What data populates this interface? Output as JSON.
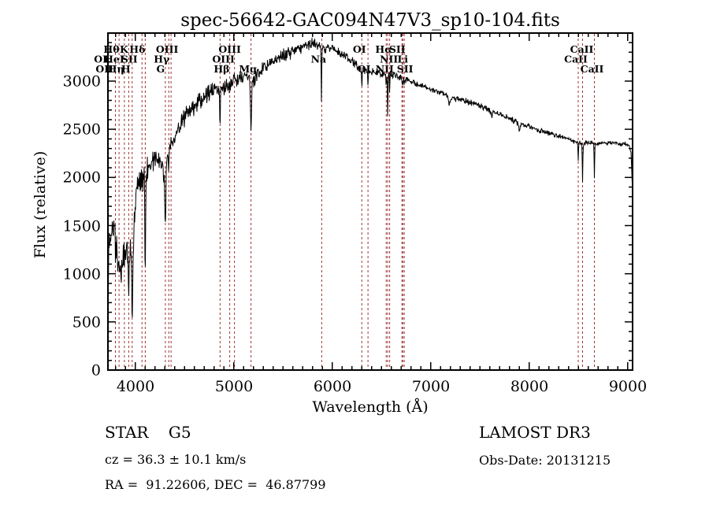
{
  "title": "spec-56642-GAC094N47V3_sp10-104.fits",
  "colors": {
    "background": "#ffffff",
    "spectrum": "#000000",
    "line_marker": "#a03232",
    "axis": "#000000"
  },
  "annotations": {
    "class_label": "STAR    G5",
    "cz": "cz = 36.3 ± 10.1 km/s",
    "ra_dec": "RA =  91.22606, DEC =  46.87799",
    "survey": "LAMOST DR3",
    "obs_date": "Obs-Date: 20131215"
  },
  "chart_data": {
    "type": "line",
    "title": "spec-56642-GAC094N47V3_sp10-104.fits",
    "xlabel": "Wavelength (Å)",
    "ylabel": "Flux (relative)",
    "xlim": [
      3722,
      9050
    ],
    "ylim": [
      0,
      3500
    ],
    "grid": false,
    "legend": "none",
    "x_ticks": [
      4000,
      5000,
      6000,
      7000,
      8000,
      9000
    ],
    "x_tick_labels": [
      "4000",
      "5000",
      "6000",
      "7000",
      "8000",
      "9000"
    ],
    "y_ticks": [
      3000,
      2500,
      2000,
      1500,
      1000,
      500,
      0
    ],
    "y_tick_labels": [
      "3000",
      "2500",
      "2000",
      "1500",
      "1000",
      "500",
      "0"
    ],
    "x_minor_step": 100,
    "y_minor_step": 100,
    "spectral_lines": [
      {
        "label": "OI",
        "wavelength": 3727,
        "row": 2,
        "dx": -10
      },
      {
        "label": "OII",
        "wavelength": 3727,
        "row": 3,
        "dx": -5
      },
      {
        "label": "Hθ",
        "wavelength": 3798,
        "row": 1,
        "dx": -5
      },
      {
        "label": "Hη",
        "wavelength": 3835,
        "row": 3,
        "dx": -4
      },
      {
        "label": "HeI",
        "wavelength": 3889,
        "row": 2,
        "dx": -13
      },
      {
        "label": "K",
        "wavelength": 3933,
        "row": 1,
        "dx": -6
      },
      {
        "label": "H",
        "wavelength": 3968,
        "row": 3,
        "dx": -8
      },
      {
        "label": "SII",
        "wavelength": 4068,
        "row": 2,
        "dx": -16
      },
      {
        "label": "Hδ",
        "wavelength": 4101,
        "row": 1,
        "dx": -10
      },
      {
        "label": "G",
        "wavelength": 4305,
        "row": 3,
        "dx": -6
      },
      {
        "label": "Hγ",
        "wavelength": 4340,
        "row": 2,
        "dx": -9
      },
      {
        "label": "OIII",
        "wavelength": 4363,
        "row": 1,
        "dx": -5
      },
      {
        "label": "Hβ",
        "wavelength": 4861,
        "row": 3,
        "dx": 2
      },
      {
        "label": "OIII",
        "wavelength": 4959,
        "row": 2,
        "dx": -8
      },
      {
        "label": "OIII",
        "wavelength": 5007,
        "row": 1,
        "dx": -6
      },
      {
        "label": "Mg",
        "wavelength": 5175,
        "row": 3,
        "dx": -4
      },
      {
        "label": "Na",
        "wavelength": 5893,
        "row": 2,
        "dx": -4
      },
      {
        "label": "OI",
        "wavelength": 6300,
        "row": 1,
        "dx": -3
      },
      {
        "label": "OI",
        "wavelength": 6363,
        "row": 3,
        "dx": -5
      },
      {
        "label": "NII",
        "wavelength": 6548,
        "row": 3,
        "dx": -2
      },
      {
        "label": "Hα",
        "wavelength": 6563,
        "row": 1,
        "dx": -5
      },
      {
        "label": "NII",
        "wavelength": 6583,
        "row": 2,
        "dx": -1
      },
      {
        "label": "Li",
        "wavelength": 6708,
        "row": 2,
        "dx": 1
      },
      {
        "label": "SII",
        "wavelength": 6716,
        "row": 1,
        "dx": -7
      },
      {
        "label": "SII",
        "wavelength": 6731,
        "row": 3,
        "dx": 1
      },
      {
        "label": "CaII",
        "wavelength": 8498,
        "row": 2,
        "dx": -3
      },
      {
        "label": "CaII",
        "wavelength": 8542,
        "row": 1,
        "dx": -1
      },
      {
        "label": "CaII",
        "wavelength": 8662,
        "row": 3,
        "dx": -3
      }
    ],
    "envelope_points": [
      [
        3722,
        60,
        30
      ],
      [
        3728,
        1150,
        260
      ],
      [
        3745,
        1320,
        260
      ],
      [
        3762,
        1420,
        270
      ],
      [
        3778,
        1450,
        280
      ],
      [
        3795,
        1280,
        250
      ],
      [
        3815,
        1150,
        220
      ],
      [
        3835,
        1080,
        200
      ],
      [
        3855,
        1020,
        190
      ],
      [
        3875,
        1130,
        190
      ],
      [
        3895,
        1220,
        200
      ],
      [
        3915,
        1260,
        210
      ],
      [
        3935,
        1150,
        240
      ],
      [
        3955,
        1220,
        260
      ],
      [
        3975,
        1200,
        280
      ],
      [
        3995,
        1650,
        220
      ],
      [
        4015,
        1900,
        190
      ],
      [
        4040,
        1960,
        170
      ],
      [
        4070,
        2000,
        170
      ],
      [
        4100,
        2010,
        180
      ],
      [
        4130,
        2100,
        150
      ],
      [
        4170,
        2160,
        140
      ],
      [
        4210,
        2200,
        140
      ],
      [
        4260,
        2160,
        150
      ],
      [
        4300,
        2020,
        160
      ],
      [
        4330,
        2230,
        140
      ],
      [
        4370,
        2360,
        130
      ],
      [
        4420,
        2470,
        120
      ],
      [
        4470,
        2570,
        115
      ],
      [
        4520,
        2660,
        110
      ],
      [
        4580,
        2720,
        110
      ],
      [
        4640,
        2780,
        110
      ],
      [
        4700,
        2840,
        110
      ],
      [
        4760,
        2880,
        110
      ],
      [
        4820,
        2910,
        110
      ],
      [
        4880,
        2930,
        110
      ],
      [
        4940,
        2950,
        105
      ],
      [
        5000,
        3000,
        105
      ],
      [
        5060,
        3030,
        100
      ],
      [
        5120,
        3040,
        100
      ],
      [
        5180,
        3000,
        110
      ],
      [
        5240,
        3080,
        95
      ],
      [
        5320,
        3130,
        90
      ],
      [
        5400,
        3200,
        85
      ],
      [
        5500,
        3270,
        80
      ],
      [
        5600,
        3310,
        80
      ],
      [
        5700,
        3350,
        75
      ],
      [
        5790,
        3390,
        70
      ],
      [
        5860,
        3370,
        65
      ],
      [
        5930,
        3340,
        60
      ],
      [
        6000,
        3330,
        60
      ],
      [
        6080,
        3290,
        60
      ],
      [
        6160,
        3240,
        55
      ],
      [
        6240,
        3170,
        55
      ],
      [
        6320,
        3110,
        50
      ],
      [
        6400,
        3100,
        50
      ],
      [
        6480,
        3090,
        50
      ],
      [
        6560,
        3060,
        50
      ],
      [
        6640,
        3060,
        45
      ],
      [
        6730,
        3020,
        45
      ],
      [
        6820,
        2990,
        40
      ],
      [
        6910,
        2950,
        40
      ],
      [
        7000,
        2920,
        40
      ],
      [
        7100,
        2880,
        40
      ],
      [
        7200,
        2830,
        40
      ],
      [
        7300,
        2810,
        38
      ],
      [
        7400,
        2780,
        35
      ],
      [
        7500,
        2740,
        35
      ],
      [
        7600,
        2700,
        38
      ],
      [
        7700,
        2660,
        35
      ],
      [
        7800,
        2620,
        35
      ],
      [
        7900,
        2560,
        38
      ],
      [
        8000,
        2530,
        35
      ],
      [
        8100,
        2490,
        35
      ],
      [
        8200,
        2460,
        33
      ],
      [
        8300,
        2430,
        32
      ],
      [
        8400,
        2390,
        30
      ],
      [
        8470,
        2370,
        30
      ],
      [
        8530,
        2350,
        28
      ],
      [
        8600,
        2360,
        28
      ],
      [
        8680,
        2350,
        28
      ],
      [
        8760,
        2360,
        28
      ],
      [
        8840,
        2355,
        26
      ],
      [
        8920,
        2350,
        26
      ],
      [
        8980,
        2350,
        24
      ],
      [
        9015,
        2330,
        20
      ],
      [
        9035,
        2250,
        15
      ],
      [
        9048,
        1880,
        5
      ]
    ],
    "absorption_features": [
      {
        "wavelength": 3933,
        "floor": 720,
        "width": 6
      },
      {
        "wavelength": 3968,
        "floor": 540,
        "width": 6
      },
      {
        "wavelength": 4101,
        "floor": 880,
        "width": 5
      },
      {
        "wavelength": 4305,
        "floor": 1480,
        "width": 8
      },
      {
        "wavelength": 4340,
        "floor": 2090,
        "width": 5
      },
      {
        "wavelength": 4861,
        "floor": 2520,
        "width": 5
      },
      {
        "wavelength": 5175,
        "floor": 2560,
        "width": 9
      },
      {
        "wavelength": 5890,
        "floor": 2770,
        "width": 4
      },
      {
        "wavelength": 6300,
        "floor": 2930,
        "width": 4
      },
      {
        "wavelength": 6363,
        "floor": 2950,
        "width": 4
      },
      {
        "wavelength": 6548,
        "floor": 2890,
        "width": 3
      },
      {
        "wavelength": 6563,
        "floor": 2620,
        "width": 4
      },
      {
        "wavelength": 6583,
        "floor": 2900,
        "width": 3
      },
      {
        "wavelength": 6708,
        "floor": 2960,
        "width": 3
      },
      {
        "wavelength": 6716,
        "floor": 2950,
        "width": 3
      },
      {
        "wavelength": 6731,
        "floor": 2950,
        "width": 3
      },
      {
        "wavelength": 7190,
        "floor": 2760,
        "width": 14
      },
      {
        "wavelength": 7620,
        "floor": 2640,
        "width": 10
      },
      {
        "wavelength": 7900,
        "floor": 2480,
        "width": 12
      },
      {
        "wavelength": 8498,
        "floor": 2170,
        "width": 4
      },
      {
        "wavelength": 8542,
        "floor": 1935,
        "width": 4
      },
      {
        "wavelength": 8662,
        "floor": 1985,
        "width": 4
      }
    ]
  }
}
